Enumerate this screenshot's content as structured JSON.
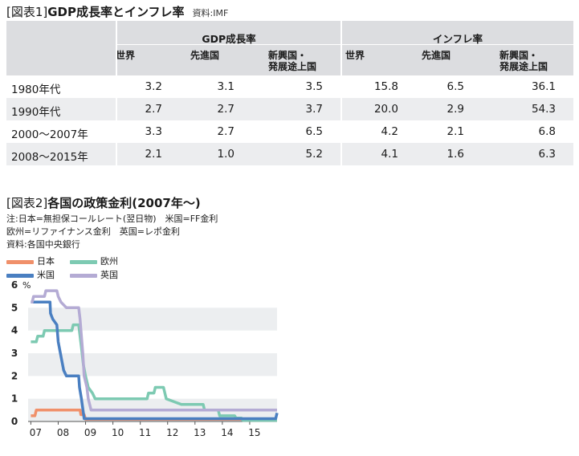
{
  "table1": {
    "title_bracket": "[図表1]",
    "title_main": "GDP成長率とインフレ率",
    "source": "資料:IMF",
    "group_headers": [
      "GDP成長率",
      "インフレ率"
    ],
    "col_headers": [
      [
        "世界"
      ],
      [
        "先進国"
      ],
      [
        "新興国・",
        "発展途上国"
      ],
      [
        "世界"
      ],
      [
        "先進国"
      ],
      [
        "新興国・",
        "発展途上国"
      ]
    ],
    "rows": [
      {
        "label": "1980年代",
        "values": [
          "3.2",
          "3.1",
          "3.5",
          "15.8",
          "6.5",
          "36.1"
        ]
      },
      {
        "label": "1990年代",
        "values": [
          "2.7",
          "2.7",
          "3.7",
          "20.0",
          "2.9",
          "54.3"
        ]
      },
      {
        "label": "2000～2007年",
        "values": [
          "3.3",
          "2.7",
          "6.5",
          "4.2",
          "2.1",
          "6.8"
        ]
      },
      {
        "label": "2008～2015年",
        "values": [
          "2.1",
          "1.0",
          "5.2",
          "4.1",
          "1.6",
          "6.3"
        ]
      }
    ]
  },
  "figure2": {
    "title_bracket": "[図表2]",
    "title_main": "各国の政策金利",
    "title_paren": "(2007年～)",
    "notes": [
      "注:日本=無担保コールレート(翌日物)　米国=FF金利",
      "欧州=リファイナンス金利　英国=レポ金利",
      "資料:各国中央銀行"
    ]
  },
  "chart_data": {
    "type": "line",
    "ylabel": "%",
    "ylim": [
      0,
      6
    ],
    "yticks": [
      "0",
      "1",
      "2",
      "3",
      "4",
      "5",
      "6"
    ],
    "xlim": [
      2006.9,
      2016.0
    ],
    "xticks": [
      {
        "value": 2007,
        "label": "07"
      },
      {
        "value": 2008,
        "label": "08"
      },
      {
        "value": 2009,
        "label": "09"
      },
      {
        "value": 2010,
        "label": "10"
      },
      {
        "value": 2011,
        "label": "11"
      },
      {
        "value": 2012,
        "label": "12"
      },
      {
        "value": 2013,
        "label": "13"
      },
      {
        "value": 2014,
        "label": "14"
      },
      {
        "value": 2015,
        "label": "15"
      }
    ],
    "legend": "top-left",
    "series": [
      {
        "name": "日本",
        "color": "#f0906a",
        "points": [
          [
            2007.0,
            0.25
          ],
          [
            2007.15,
            0.25
          ],
          [
            2007.2,
            0.5
          ],
          [
            2008.8,
            0.5
          ],
          [
            2008.83,
            0.3
          ],
          [
            2008.95,
            0.3
          ],
          [
            2009.0,
            0.1
          ],
          [
            2016.0,
            0.1
          ]
        ]
      },
      {
        "name": "欧州",
        "color": "#7dcab2",
        "points": [
          [
            2007.0,
            3.5
          ],
          [
            2007.2,
            3.5
          ],
          [
            2007.25,
            3.75
          ],
          [
            2007.45,
            3.75
          ],
          [
            2007.5,
            4.0
          ],
          [
            2008.5,
            4.0
          ],
          [
            2008.55,
            4.25
          ],
          [
            2008.75,
            4.25
          ],
          [
            2008.8,
            3.75
          ],
          [
            2008.85,
            3.25
          ],
          [
            2008.92,
            2.5
          ],
          [
            2009.0,
            2.0
          ],
          [
            2009.1,
            1.5
          ],
          [
            2009.25,
            1.25
          ],
          [
            2009.35,
            1.0
          ],
          [
            2011.25,
            1.0
          ],
          [
            2011.3,
            1.25
          ],
          [
            2011.5,
            1.25
          ],
          [
            2011.55,
            1.5
          ],
          [
            2011.85,
            1.5
          ],
          [
            2011.9,
            1.25
          ],
          [
            2011.95,
            1.0
          ],
          [
            2012.5,
            0.75
          ],
          [
            2013.3,
            0.75
          ],
          [
            2013.35,
            0.5
          ],
          [
            2013.85,
            0.5
          ],
          [
            2013.9,
            0.25
          ],
          [
            2014.45,
            0.25
          ],
          [
            2014.5,
            0.15
          ],
          [
            2014.7,
            0.15
          ],
          [
            2014.75,
            0.05
          ],
          [
            2016.0,
            0.05
          ]
        ]
      },
      {
        "name": "米国",
        "color": "#4a7fc1",
        "points": [
          [
            2007.0,
            5.25
          ],
          [
            2007.7,
            5.25
          ],
          [
            2007.72,
            4.75
          ],
          [
            2007.8,
            4.5
          ],
          [
            2007.95,
            4.25
          ],
          [
            2008.0,
            3.5
          ],
          [
            2008.08,
            3.0
          ],
          [
            2008.2,
            2.25
          ],
          [
            2008.3,
            2.0
          ],
          [
            2008.75,
            2.0
          ],
          [
            2008.78,
            1.5
          ],
          [
            2008.85,
            1.0
          ],
          [
            2008.95,
            0.125
          ],
          [
            2015.95,
            0.125
          ],
          [
            2016.0,
            0.375
          ]
        ]
      },
      {
        "name": "英国",
        "color": "#b4abd4",
        "points": [
          [
            2007.0,
            5.25
          ],
          [
            2007.05,
            5.25
          ],
          [
            2007.1,
            5.5
          ],
          [
            2007.5,
            5.5
          ],
          [
            2007.55,
            5.75
          ],
          [
            2007.95,
            5.75
          ],
          [
            2008.0,
            5.5
          ],
          [
            2008.1,
            5.25
          ],
          [
            2008.3,
            5.0
          ],
          [
            2008.75,
            5.0
          ],
          [
            2008.8,
            4.5
          ],
          [
            2008.9,
            3.0
          ],
          [
            2008.95,
            2.0
          ],
          [
            2009.05,
            1.5
          ],
          [
            2009.1,
            1.0
          ],
          [
            2009.2,
            0.5
          ],
          [
            2016.0,
            0.5
          ]
        ]
      }
    ]
  }
}
